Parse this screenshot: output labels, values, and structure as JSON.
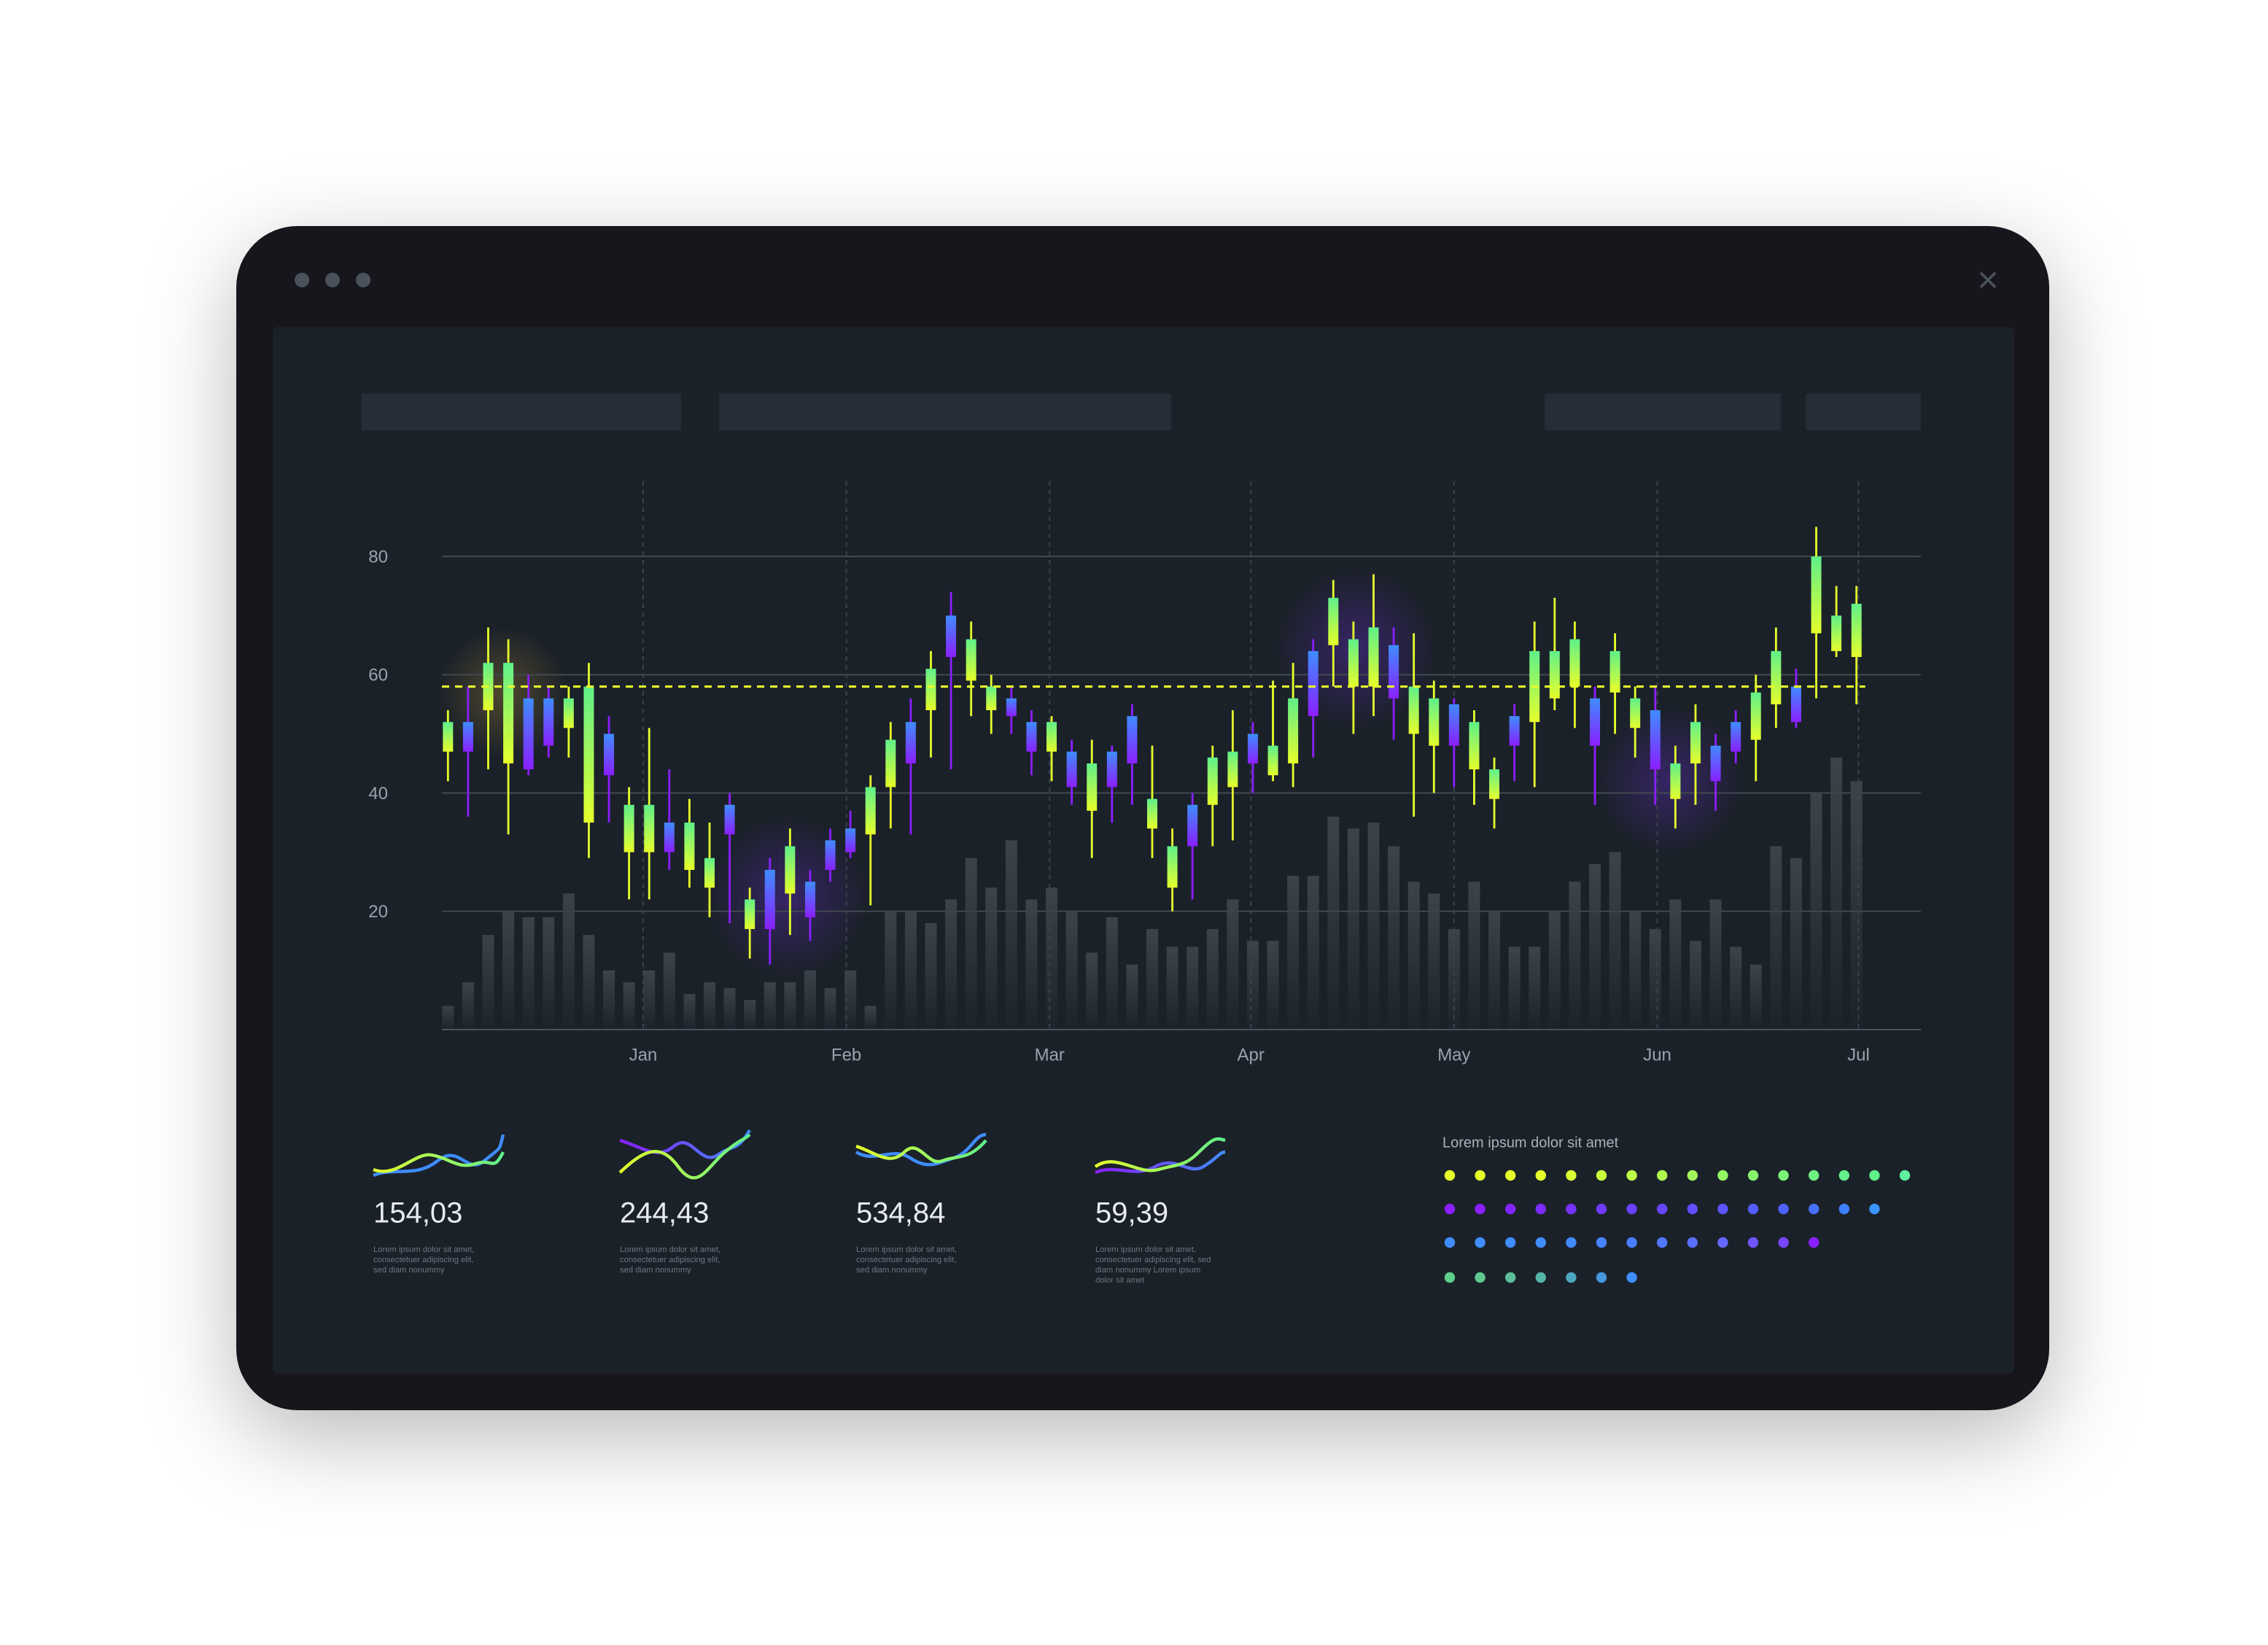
{
  "chart_data": {
    "type": "candlestick",
    "open": [
      47,
      52,
      54,
      45,
      56,
      56,
      51,
      35,
      50,
      30,
      30,
      35,
      27,
      24,
      38,
      17,
      27,
      23,
      25,
      32,
      34,
      33,
      41,
      52,
      54,
      70,
      59,
      54,
      56,
      52,
      47,
      47,
      37,
      47,
      53,
      34,
      24,
      38,
      38,
      41,
      50,
      43,
      45,
      64,
      65,
      58,
      58,
      65,
      50,
      48,
      55,
      44,
      39,
      53,
      52,
      56,
      58,
      56,
      57,
      51,
      54,
      39,
      45,
      48,
      52,
      49,
      55,
      58,
      67,
      64,
      63
    ],
    "high": [
      54,
      58,
      68,
      66,
      60,
      58,
      58,
      62,
      53,
      41,
      51,
      44,
      39,
      35,
      40,
      24,
      29,
      34,
      27,
      34,
      37,
      43,
      52,
      56,
      64,
      74,
      69,
      60,
      58,
      54,
      53,
      49,
      49,
      48,
      55,
      48,
      34,
      40,
      48,
      54,
      52,
      59,
      62,
      66,
      76,
      69,
      77,
      68,
      67,
      59,
      56,
      54,
      46,
      55,
      69,
      73,
      69,
      58,
      67,
      58,
      58,
      48,
      55,
      50,
      54,
      60,
      68,
      61,
      85,
      75,
      75
    ],
    "low": [
      42,
      36,
      44,
      33,
      43,
      46,
      46,
      29,
      35,
      22,
      22,
      27,
      24,
      19,
      18,
      12,
      11,
      16,
      15,
      25,
      29,
      21,
      34,
      33,
      46,
      44,
      53,
      50,
      50,
      43,
      42,
      38,
      29,
      35,
      38,
      29,
      20,
      22,
      31,
      32,
      40,
      42,
      41,
      46,
      58,
      50,
      53,
      49,
      36,
      40,
      41,
      38,
      34,
      42,
      41,
      54,
      51,
      38,
      50,
      46,
      38,
      34,
      38,
      37,
      45,
      42,
      51,
      51,
      56,
      63,
      55
    ],
    "close": [
      52,
      47,
      62,
      62,
      44,
      48,
      56,
      58,
      43,
      38,
      38,
      30,
      35,
      29,
      33,
      22,
      17,
      31,
      19,
      27,
      30,
      41,
      49,
      45,
      61,
      63,
      66,
      58,
      53,
      47,
      52,
      41,
      45,
      41,
      45,
      39,
      31,
      31,
      46,
      47,
      45,
      48,
      56,
      53,
      73,
      66,
      68,
      56,
      58,
      56,
      48,
      52,
      44,
      48,
      64,
      64,
      66,
      48,
      64,
      56,
      44,
      45,
      52,
      42,
      47,
      57,
      64,
      52,
      80,
      70,
      72
    ],
    "volume": [
      4,
      8,
      16,
      20,
      19,
      19,
      23,
      16,
      10,
      8,
      10,
      13,
      6,
      8,
      7,
      5,
      8,
      8,
      10,
      7,
      10,
      4,
      20,
      20,
      18,
      22,
      29,
      24,
      32,
      22,
      24,
      20,
      13,
      19,
      11,
      17,
      14,
      14,
      17,
      22,
      15,
      15,
      26,
      26,
      36,
      34,
      35,
      31,
      25,
      23,
      17,
      25,
      20,
      14,
      14,
      20,
      25,
      28,
      30,
      20,
      17,
      22,
      15,
      22,
      14,
      11,
      31,
      29,
      40,
      46,
      42
    ],
    "up_colors": [
      "#5ff08a",
      "#e6ff2b"
    ],
    "down_colors": [
      "#3f8dff",
      "#8a1fff"
    ],
    "volume_color": "#3d434b",
    "reference_line": 58,
    "reference_color": "#e6ff2b",
    "xlim": [
      -0.3,
      73.2
    ],
    "xticks": [
      {
        "value": 9.7,
        "label": "Jan"
      },
      {
        "value": 19.8,
        "label": "Feb"
      },
      {
        "value": 29.9,
        "label": "Mar"
      },
      {
        "value": 39.9,
        "label": "Apr"
      },
      {
        "value": 50,
        "label": "May"
      },
      {
        "value": 60.1,
        "label": "Jun"
      },
      {
        "value": 70.1,
        "label": "Jul"
      }
    ],
    "ylim": [
      0,
      90
    ],
    "yticks": [
      20,
      40,
      60,
      80
    ],
    "grid": true
  },
  "cards": [
    {
      "value": "154,03",
      "description": [
        "Lorem ipsum dolor sit amet,",
        "consectetuer adipiscing elit,",
        "sed diam nonummy"
      ]
    },
    {
      "value": "244,43",
      "description": [
        "Lorem ipsum dolor sit amet,",
        "consectetuer adipiscing elit,",
        "sed diam nonummy"
      ]
    },
    {
      "value": "534,84",
      "description": [
        "Lorem ipsum dolor sit amet,",
        "consectetuer adipiscing elit,",
        "sed diam nonummy"
      ]
    },
    {
      "value": "59,39",
      "description": [
        "Lorem ipsum dolor sit amet,",
        "consectetuer adipiscing elit, sed",
        "diam nonummy Lorem ipsum",
        "dolor sit amet"
      ]
    }
  ],
  "dots_panel": {
    "title": "Lorem ipsum dolor sit amet"
  }
}
